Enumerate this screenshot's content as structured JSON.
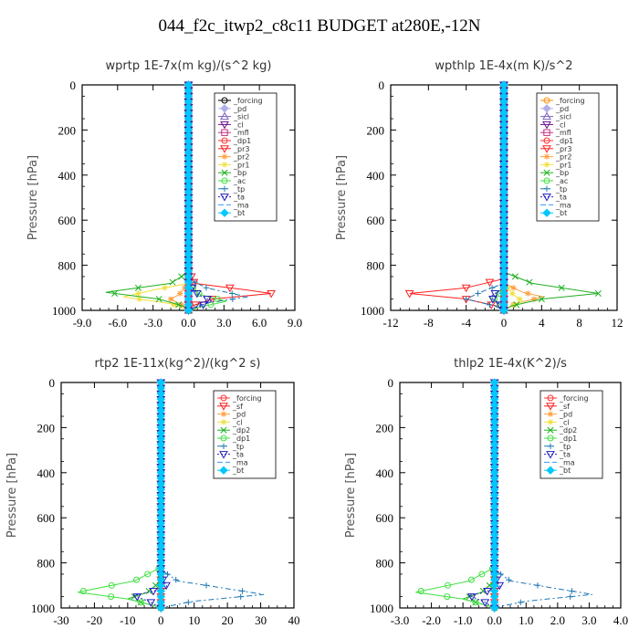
{
  "figure": {
    "title": "044_f2c_itwp2_c8c11  BUDGET at280E,-12N"
  },
  "chart_data": [
    {
      "type": "line",
      "title": "wprtp  1E-7x(m kg)/(s^2 kg)",
      "ylabel": "Pressure [hPa]",
      "xlim": [
        -9,
        9
      ],
      "ylim": [
        1000,
        0
      ],
      "xticks": [
        "-9.0",
        "-6.0",
        "-3.0",
        "0.0",
        "3.0",
        "6.0",
        "9.0"
      ],
      "yticks": [
        "0",
        "200",
        "400",
        "600",
        "800",
        "1000"
      ],
      "legend": "top-right",
      "series": [
        {
          "name": "_forcing",
          "color": "#000000",
          "marker": "circle",
          "dash": "",
          "p": [
            0,
            1000
          ],
          "x": [
            0,
            0
          ]
        },
        {
          "name": "_pd",
          "color": "#b0b0e8",
          "marker": "diamond",
          "dash": "",
          "p": [
            0,
            1000
          ],
          "x": [
            0,
            0
          ]
        },
        {
          "name": "_sicl",
          "color": "#7f5fbf",
          "marker": "triangle",
          "dash": "",
          "p": [
            0,
            1000
          ],
          "x": [
            0,
            0
          ]
        },
        {
          "name": "_cl",
          "color": "#6a0f8e",
          "marker": "tridown",
          "dash": "",
          "p": [
            0,
            1000
          ],
          "x": [
            0,
            0
          ]
        },
        {
          "name": "_mfl",
          "color": "#c0307f",
          "marker": "square",
          "dash": "",
          "p": [
            0,
            1000
          ],
          "x": [
            0,
            0
          ]
        },
        {
          "name": "_dp1",
          "color": "#ff3030",
          "marker": "circle",
          "dash": "",
          "p": [
            0,
            1000
          ],
          "x": [
            0,
            0
          ]
        },
        {
          "name": "_pr3",
          "color": "#ff2020",
          "marker": "tridown",
          "dash": "",
          "p": [
            0,
            820,
            880,
            910,
            925,
            950,
            980,
            1000
          ],
          "x": [
            0,
            0,
            0.5,
            5.0,
            7.0,
            2.0,
            0.3,
            0
          ]
        },
        {
          "name": "_pr2",
          "color": "#ffa040",
          "marker": "star",
          "dash": "",
          "p": [
            0,
            880,
            930,
            950,
            980,
            1000
          ],
          "x": [
            0,
            0,
            -0.8,
            -1.5,
            -0.4,
            0
          ]
        },
        {
          "name": "_pr1",
          "color": "#f0e040",
          "marker": "star",
          "dash": "",
          "p": [
            0,
            880,
            910,
            940,
            970,
            1000
          ],
          "x": [
            0,
            0,
            -3.0,
            -5.5,
            -1.5,
            0
          ]
        },
        {
          "name": "_bp",
          "color": "#20b020",
          "marker": "x",
          "dash": "",
          "p": [
            0,
            830,
            880,
            920,
            950,
            980,
            1000
          ],
          "x": [
            0,
            0,
            -1.5,
            -7.0,
            -2.5,
            -0.5,
            0
          ]
        },
        {
          "name": "_ac",
          "color": "#40e040",
          "marker": "circle",
          "dash": "",
          "p": [
            0,
            880,
            930,
            960,
            985,
            1000
          ],
          "x": [
            0,
            0,
            1.0,
            3.2,
            1.0,
            0
          ]
        },
        {
          "name": "_tp",
          "color": "#1f78b4",
          "marker": "cross",
          "dash": "6,3,2,3",
          "p": [
            0,
            860,
            900,
            940,
            970,
            1000
          ],
          "x": [
            0,
            0,
            1.5,
            5.0,
            1.2,
            0
          ]
        },
        {
          "name": "_ta",
          "color": "#2020c0",
          "marker": "tridown",
          "dash": "2,2",
          "p": [
            0,
            880,
            930,
            960,
            1000
          ],
          "x": [
            0,
            0,
            0.8,
            2.0,
            0
          ]
        },
        {
          "name": "_ma",
          "color": "#3399ff",
          "marker": "none",
          "dash": "6,3",
          "p": [
            0,
            1000
          ],
          "x": [
            0,
            0
          ]
        },
        {
          "name": "_bt",
          "color": "#00c8ff",
          "marker": "diamond",
          "dash": "",
          "p": [
            0,
            1000
          ],
          "x": [
            0,
            0
          ]
        }
      ]
    },
    {
      "type": "line",
      "title": "wpthlp  1E-4x(m K)/s^2",
      "ylabel": "Pressure [hPa]",
      "xlim": [
        -12,
        12
      ],
      "ylim": [
        1000,
        0
      ],
      "xticks": [
        "-12",
        "-8",
        "-4",
        "0",
        "4",
        "8",
        "12"
      ],
      "yticks": [
        "0",
        "200",
        "400",
        "600",
        "800",
        "1000"
      ],
      "legend": "top-right",
      "series": [
        {
          "name": "_forcing",
          "color": "#ff8c00",
          "marker": "circle",
          "dash": "",
          "p": [
            0,
            1000
          ],
          "x": [
            0,
            0
          ]
        },
        {
          "name": "_pd",
          "color": "#b0b0e8",
          "marker": "diamond",
          "dash": "",
          "p": [
            0,
            1000
          ],
          "x": [
            0,
            0
          ]
        },
        {
          "name": "_sicl",
          "color": "#7f5fbf",
          "marker": "triangle",
          "dash": "",
          "p": [
            0,
            1000
          ],
          "x": [
            0,
            0
          ]
        },
        {
          "name": "_cl",
          "color": "#6a0f8e",
          "marker": "tridown",
          "dash": "",
          "p": [
            0,
            1000
          ],
          "x": [
            0,
            0
          ]
        },
        {
          "name": "_mfl",
          "color": "#c0307f",
          "marker": "square",
          "dash": "",
          "p": [
            0,
            1000
          ],
          "x": [
            0,
            0
          ]
        },
        {
          "name": "_dp1",
          "color": "#ff3030",
          "marker": "circle",
          "dash": "",
          "p": [
            0,
            1000
          ],
          "x": [
            0,
            0
          ]
        },
        {
          "name": "_pr3",
          "color": "#ff2020",
          "marker": "tridown",
          "dash": "",
          "p": [
            0,
            860,
            900,
            925,
            950,
            980,
            1000
          ],
          "x": [
            0,
            0,
            -4.0,
            -10.0,
            -4.0,
            -0.8,
            0
          ]
        },
        {
          "name": "_pr2",
          "color": "#ffa040",
          "marker": "star",
          "dash": "",
          "p": [
            0,
            880,
            920,
            940,
            970,
            1000
          ],
          "x": [
            0,
            0,
            2.0,
            4.2,
            1.2,
            0
          ]
        },
        {
          "name": "_pr1",
          "color": "#f0e040",
          "marker": "star",
          "dash": "",
          "p": [
            0,
            880,
            930,
            960,
            985,
            1000
          ],
          "x": [
            0,
            0,
            1.0,
            2.0,
            0.5,
            0
          ]
        },
        {
          "name": "_bp",
          "color": "#20b020",
          "marker": "x",
          "dash": "",
          "p": [
            0,
            830,
            880,
            925,
            950,
            980,
            1000
          ],
          "x": [
            0,
            0,
            3.0,
            10.0,
            4.0,
            0.8,
            0
          ]
        },
        {
          "name": "_ac",
          "color": "#40e040",
          "marker": "circle",
          "dash": "",
          "p": [
            0,
            900,
            950,
            980,
            1000
          ],
          "x": [
            0,
            0,
            -1.0,
            -0.3,
            0
          ]
        },
        {
          "name": "_tp",
          "color": "#1f78b4",
          "marker": "cross",
          "dash": "6,3,2,3",
          "p": [
            0,
            880,
            920,
            950,
            980,
            1000
          ],
          "x": [
            0,
            0,
            -2.5,
            -4.0,
            -1.0,
            0
          ]
        },
        {
          "name": "_ta",
          "color": "#2020c0",
          "marker": "tridown",
          "dash": "2,2",
          "p": [
            0,
            900,
            940,
            970,
            1000
          ],
          "x": [
            0,
            0,
            -1.5,
            -0.5,
            0
          ]
        },
        {
          "name": "_ma",
          "color": "#3399ff",
          "marker": "none",
          "dash": "6,3",
          "p": [
            0,
            1000
          ],
          "x": [
            0,
            0
          ]
        },
        {
          "name": "_bt",
          "color": "#00c8ff",
          "marker": "diamond",
          "dash": "",
          "p": [
            0,
            1000
          ],
          "x": [
            0,
            0
          ]
        }
      ]
    },
    {
      "type": "line",
      "title": "rtp2  1E-11x(kg^2)/(kg^2 s)",
      "ylabel": "Pressure [hPa]",
      "xlim": [
        -30,
        40
      ],
      "ylim": [
        1000,
        0
      ],
      "xticks": [
        "-30",
        "-20",
        "-10",
        "0",
        "10",
        "20",
        "30",
        "40"
      ],
      "yticks": [
        "0",
        "200",
        "400",
        "600",
        "800",
        "1000"
      ],
      "legend": "top-right",
      "series": [
        {
          "name": "_forcing",
          "color": "#ff3030",
          "marker": "circle",
          "dash": "",
          "p": [
            0,
            1000
          ],
          "x": [
            0,
            0
          ]
        },
        {
          "name": "_sf",
          "color": "#ff2020",
          "marker": "tridown",
          "dash": "",
          "p": [
            0,
            1000
          ],
          "x": [
            0,
            0
          ]
        },
        {
          "name": "_pd",
          "color": "#ffa040",
          "marker": "star",
          "dash": "",
          "p": [
            0,
            1000
          ],
          "x": [
            0,
            0
          ]
        },
        {
          "name": "_cl",
          "color": "#f0e040",
          "marker": "star",
          "dash": "",
          "p": [
            0,
            1000
          ],
          "x": [
            0,
            0
          ]
        },
        {
          "name": "_dp2",
          "color": "#20b020",
          "marker": "x",
          "dash": "",
          "p": [
            0,
            880,
            930,
            960,
            990,
            1000
          ],
          "x": [
            0,
            0,
            -4.0,
            -10.0,
            -2.0,
            0
          ]
        },
        {
          "name": "_dp1",
          "color": "#40e040",
          "marker": "circle",
          "dash": "",
          "p": [
            0,
            820,
            880,
            930,
            960,
            990,
            1000
          ],
          "x": [
            0,
            0,
            -8.0,
            -25.0,
            -10.0,
            -2.0,
            0
          ]
        },
        {
          "name": "_tp",
          "color": "#1f78b4",
          "marker": "cross",
          "dash": "6,3,2,3",
          "p": [
            0,
            830,
            880,
            940,
            970,
            990,
            1000
          ],
          "x": [
            0,
            0,
            5.0,
            31.0,
            10.0,
            3.0,
            0
          ]
        },
        {
          "name": "_ta",
          "color": "#2020c0",
          "marker": "tridown",
          "dash": "2,2",
          "p": [
            0,
            860,
            910,
            945,
            975,
            1000
          ],
          "x": [
            0,
            0,
            2.0,
            -8.0,
            -3.0,
            0
          ]
        },
        {
          "name": "_ma",
          "color": "#3399ff",
          "marker": "none",
          "dash": "6,3",
          "p": [
            0,
            1000
          ],
          "x": [
            0,
            0
          ]
        },
        {
          "name": "_bt",
          "color": "#00c8ff",
          "marker": "diamond",
          "dash": "",
          "p": [
            0,
            1000
          ],
          "x": [
            0,
            0
          ]
        }
      ]
    },
    {
      "type": "line",
      "title": "thlp2  1E-4x(K^2)/s",
      "ylabel": "Pressure [hPa]",
      "xlim": [
        -3,
        4
      ],
      "ylim": [
        1000,
        0
      ],
      "xticks": [
        "-3.0",
        "-2.0",
        "-1.0",
        "0.0",
        "1.0",
        "2.0",
        "3.0",
        "4.0"
      ],
      "yticks": [
        "0",
        "200",
        "400",
        "600",
        "800",
        "1000"
      ],
      "legend": "top-right",
      "series": [
        {
          "name": "_forcing",
          "color": "#ff3030",
          "marker": "circle",
          "dash": "",
          "p": [
            0,
            1000
          ],
          "x": [
            0,
            0
          ]
        },
        {
          "name": "_sf",
          "color": "#ff2020",
          "marker": "tridown",
          "dash": "",
          "p": [
            0,
            1000
          ],
          "x": [
            0,
            0
          ]
        },
        {
          "name": "_pd",
          "color": "#ffa040",
          "marker": "star",
          "dash": "",
          "p": [
            0,
            1000
          ],
          "x": [
            0,
            0
          ]
        },
        {
          "name": "_cl",
          "color": "#f0e040",
          "marker": "star",
          "dash": "",
          "p": [
            0,
            1000
          ],
          "x": [
            0,
            0
          ]
        },
        {
          "name": "_dp2",
          "color": "#20b020",
          "marker": "x",
          "dash": "",
          "p": [
            0,
            880,
            930,
            960,
            990,
            1000
          ],
          "x": [
            0,
            0,
            -0.4,
            -1.0,
            -0.2,
            0
          ]
        },
        {
          "name": "_dp1",
          "color": "#40e040",
          "marker": "circle",
          "dash": "",
          "p": [
            0,
            820,
            880,
            930,
            960,
            990,
            1000
          ],
          "x": [
            0,
            0,
            -0.8,
            -2.5,
            -1.0,
            -0.2,
            0
          ]
        },
        {
          "name": "_tp",
          "color": "#1f78b4",
          "marker": "cross",
          "dash": "6,3,2,3",
          "p": [
            0,
            830,
            880,
            940,
            970,
            990,
            1000
          ],
          "x": [
            0,
            0,
            0.5,
            3.1,
            1.0,
            0.3,
            0
          ]
        },
        {
          "name": "_ta",
          "color": "#2020c0",
          "marker": "tridown",
          "dash": "2,2",
          "p": [
            0,
            860,
            910,
            945,
            975,
            1000
          ],
          "x": [
            0,
            0,
            0.2,
            -0.8,
            -0.3,
            0
          ]
        },
        {
          "name": "_ma",
          "color": "#3399ff",
          "marker": "none",
          "dash": "6,3",
          "p": [
            0,
            1000
          ],
          "x": [
            0,
            0
          ]
        },
        {
          "name": "_bt",
          "color": "#00c8ff",
          "marker": "diamond",
          "dash": "",
          "p": [
            0,
            1000
          ],
          "x": [
            0,
            0
          ]
        }
      ]
    }
  ]
}
